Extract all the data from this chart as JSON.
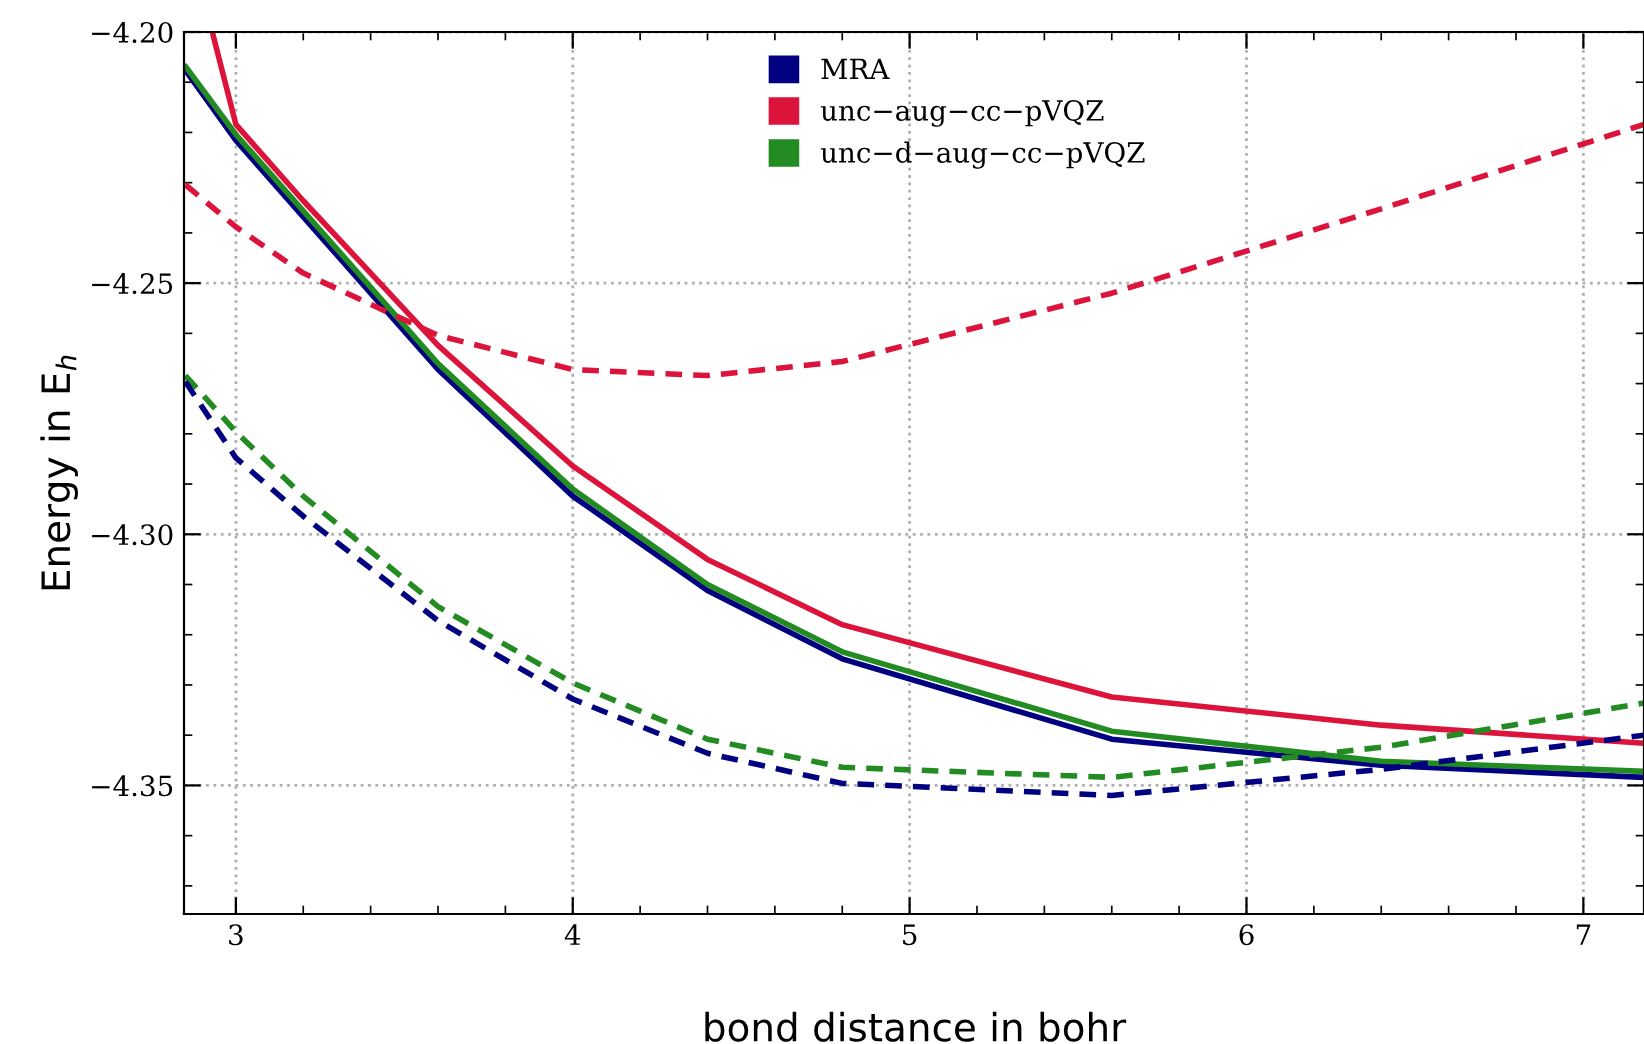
{
  "chart_data": {
    "type": "line",
    "xlabel": "bond distance in bohr",
    "ylabel": "Energy in E$_{h}$",
    "x": [
      2.85,
      3.0,
      3.2,
      3.6,
      4.0,
      4.4,
      4.8,
      5.6,
      6.4,
      7.18
    ],
    "series": [
      {
        "name": "MRA",
        "color": "#000080",
        "line_style": "solid",
        "values": [
          -4.2076,
          -4.2216,
          -4.2368,
          -4.2672,
          -4.2924,
          -4.3112,
          -4.3248,
          -4.3408,
          -4.346,
          -4.3484
        ]
      },
      {
        "name": "unc−aug−cc−pVQZ",
        "color": "#dc143c",
        "line_style": "solid",
        "x": [
          2.93,
          3.0,
          3.2,
          3.6,
          4.0,
          4.4,
          4.8,
          5.6,
          6.4,
          7.18
        ],
        "values": [
          -4.2,
          -4.2184,
          -4.2336,
          -4.2624,
          -4.2864,
          -4.305,
          -4.318,
          -4.3324,
          -4.338,
          -4.3416
        ]
      },
      {
        "name": "unc−d−aug−cc−pVQZ",
        "color": "#228b22",
        "line_style": "solid",
        "values": [
          -4.2068,
          -4.2204,
          -4.2356,
          -4.266,
          -4.291,
          -4.31,
          -4.3234,
          -4.3392,
          -4.3452,
          -4.3472
        ]
      },
      {
        "color": "#dc143c",
        "line_style": "dashed",
        "values": [
          -4.2304,
          -4.2388,
          -4.248,
          -4.2604,
          -4.2672,
          -4.2684,
          -4.2656,
          -4.252,
          -4.2352,
          -4.2184
        ]
      },
      {
        "color": "#228b22",
        "line_style": "dashed",
        "values": [
          -4.2684,
          -4.2796,
          -4.2924,
          -4.3144,
          -4.3296,
          -4.3408,
          -4.3464,
          -4.3484,
          -4.3424,
          -4.3336
        ]
      },
      {
        "color": "#000080",
        "line_style": "dashed",
        "values": [
          -4.2696,
          -4.2848,
          -4.2964,
          -4.3172,
          -4.3328,
          -4.3436,
          -4.3496,
          -4.352,
          -4.3468,
          -4.34
        ]
      }
    ],
    "xlim": [
      2.846,
      7.18
    ],
    "xticks": [
      3,
      4,
      5,
      6,
      7
    ],
    "ylim": [
      -4.3756,
      -4.2
    ],
    "yticks": [
      {
        "value": -4.35,
        "label": "−4.35"
      },
      {
        "value": -4.3,
        "label": "−4.30"
      },
      {
        "value": -4.25,
        "label": "−4.25"
      },
      {
        "value": -4.2,
        "label": "−4.20"
      }
    ],
    "grid": true,
    "legend": "top"
  }
}
